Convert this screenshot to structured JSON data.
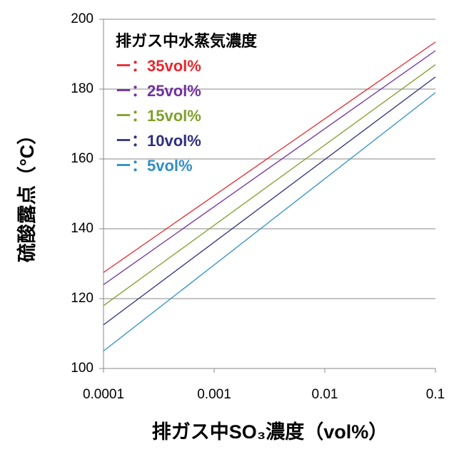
{
  "chart_data": {
    "type": "line",
    "x_label": "排ガス中SO₃濃度（vol%）",
    "y_label": "硫酸露点（°C）",
    "legend_title": "排ガス中水蒸気濃度",
    "legend_position": "upper left",
    "x_scale": "log",
    "grid": "y",
    "x": [
      0.0001,
      0.1
    ],
    "xlim": [
      0.0001,
      0.1
    ],
    "xticks": [
      0.0001,
      0.001,
      0.01,
      0.1
    ],
    "ylim": [
      100,
      200
    ],
    "yticks": [
      100,
      120,
      140,
      160,
      180,
      200
    ],
    "series": [
      {
        "name": "ー：35vol%",
        "color": "#e8262b",
        "values": [
          127.5,
          193.5
        ]
      },
      {
        "name": "ー：25vol%",
        "color": "#7030a0",
        "values": [
          124,
          191
        ]
      },
      {
        "name": "ー：15vol%",
        "color": "#7f9f2a",
        "values": [
          118,
          187
        ]
      },
      {
        "name": "ー：10vol%",
        "color": "#2e2f7f",
        "values": [
          112.5,
          183.5
        ]
      },
      {
        "name": "ー：5vol%",
        "color": "#2f8ec7",
        "values": [
          105,
          179
        ]
      }
    ]
  }
}
